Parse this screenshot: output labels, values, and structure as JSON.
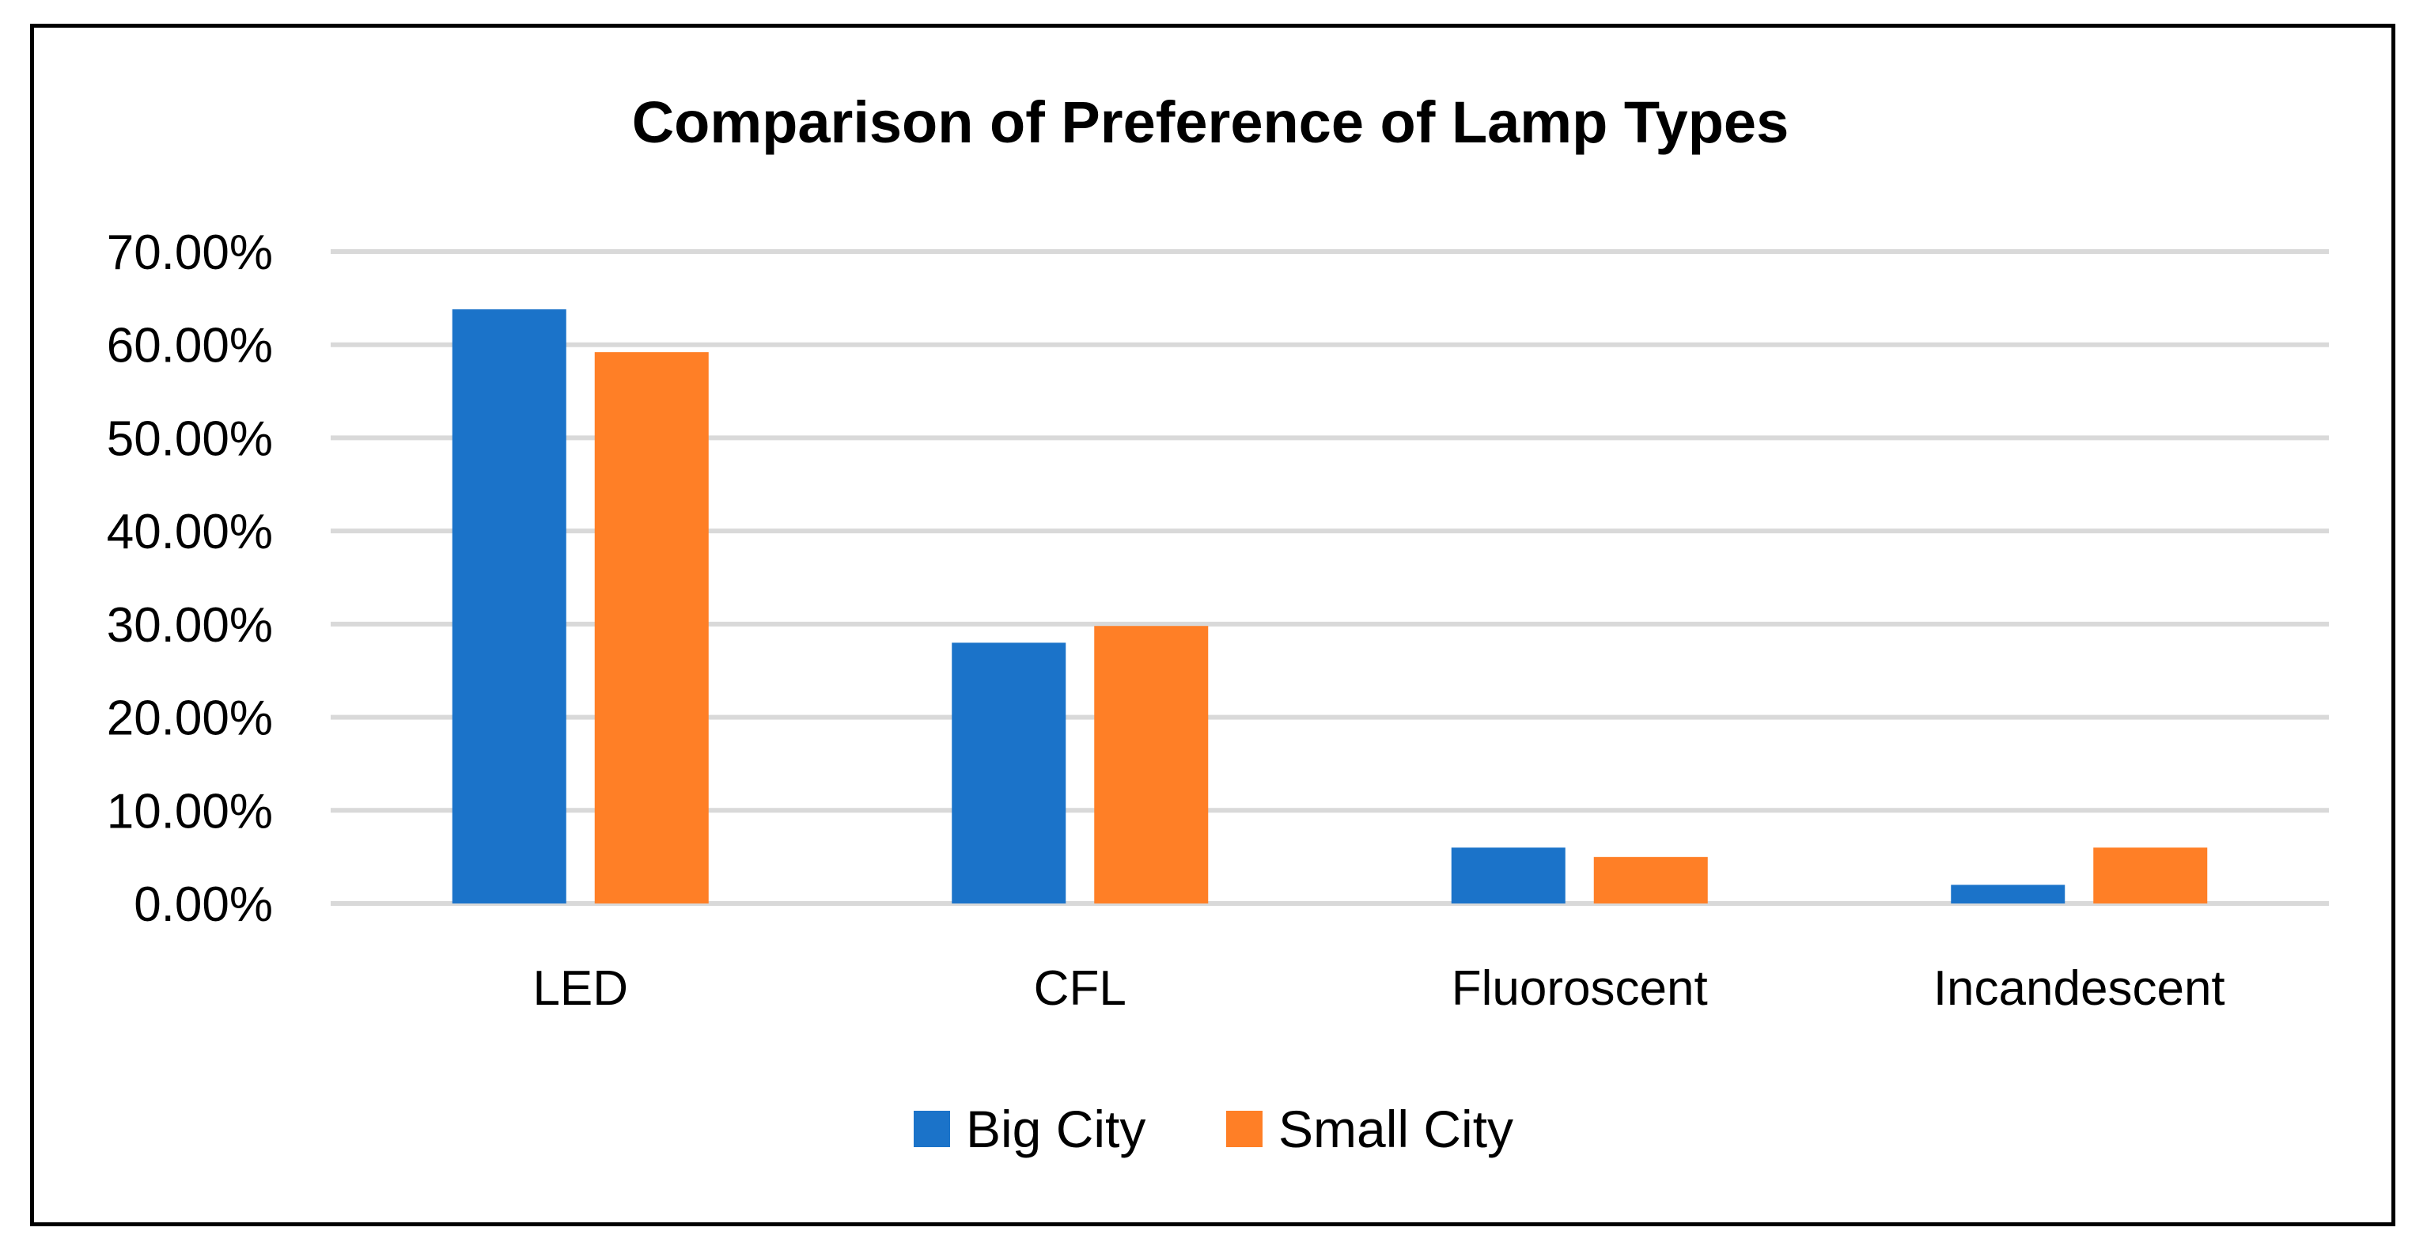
{
  "chart_data": {
    "type": "bar",
    "title": "Comparison of Preference of Lamp Types",
    "categories": [
      "LED",
      "CFL",
      "Fluoroscent",
      "Incandescent"
    ],
    "series": [
      {
        "name": "Big City",
        "color": "#1B73C9",
        "values": [
          63.8,
          28.0,
          6.0,
          2.0
        ]
      },
      {
        "name": "Small City",
        "color": "#FF7F26",
        "values": [
          59.2,
          29.8,
          5.0,
          6.0
        ]
      }
    ],
    "y_ticks": [
      "0.00%",
      "10.00%",
      "20.00%",
      "30.00%",
      "40.00%",
      "50.00%",
      "60.00%",
      "70.00%"
    ],
    "ylim": [
      0,
      70
    ],
    "grid": true,
    "legend": "bottom",
    "xlabel": "",
    "ylabel": ""
  }
}
